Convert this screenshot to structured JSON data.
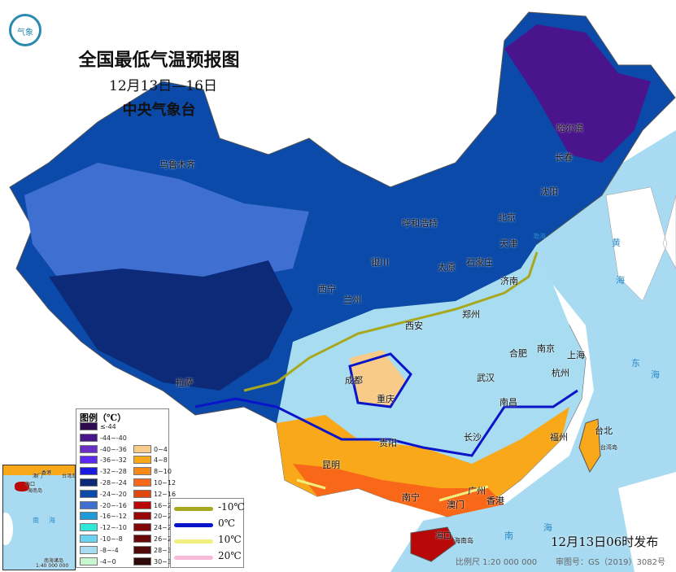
{
  "title": "全国最低气温预报图",
  "date_range": "12月13日—16日",
  "issuer": "中央气象台",
  "logo": "气象",
  "cities": [
    "乌鲁木齐",
    "哈尔滨",
    "长春",
    "沈阳",
    "北京",
    "天津",
    "呼和浩特",
    "银川",
    "太原",
    "石家庄",
    "济南",
    "西宁",
    "兰州",
    "郑州",
    "西安",
    "合肥",
    "南京",
    "上海",
    "拉萨",
    "成都",
    "重庆",
    "武汉",
    "杭州",
    "长沙",
    "南昌",
    "贵阳",
    "福州",
    "台北",
    "昆明",
    "南宁",
    "广州",
    "香港",
    "澳门",
    "海口",
    "海南岛",
    "台湾岛"
  ],
  "seas": [
    "黄",
    "海",
    "渤海",
    "东",
    "海",
    "南",
    "海"
  ],
  "legend": {
    "title": "图例（℃）",
    "cold": [
      {
        "label": "≤-44",
        "color": "#2e0a4e"
      },
      {
        "label": "-44~-40",
        "color": "#4a148c"
      },
      {
        "label": "-40~-36",
        "color": "#6a2fc4"
      },
      {
        "label": "-36~-32",
        "color": "#5b2af0"
      },
      {
        "label": "-32~-28",
        "color": "#1b1be0"
      },
      {
        "label": "-28~-24",
        "color": "#0d2a78"
      },
      {
        "label": "-24~-20",
        "color": "#0b4aa8"
      },
      {
        "label": "-20~-16",
        "color": "#3f6fd0"
      },
      {
        "label": "-16~-12",
        "color": "#1e9ad8"
      },
      {
        "label": "-12~-10",
        "color": "#30e8d8"
      },
      {
        "label": "-10~-8",
        "color": "#6cd2f2"
      },
      {
        "label": "-8~-4",
        "color": "#a8dcf0"
      },
      {
        "label": "-4~0",
        "color": "#c8f8d0"
      }
    ],
    "warm": [
      {
        "label": "0~4",
        "color": "#f8cc88"
      },
      {
        "label": "4~8",
        "color": "#f8a818"
      },
      {
        "label": "8~10",
        "color": "#f88818"
      },
      {
        "label": "10~12",
        "color": "#f86818"
      },
      {
        "label": "12~16",
        "color": "#e04810"
      },
      {
        "label": "16~20",
        "color": "#b80808"
      },
      {
        "label": "20~24",
        "color": "#980808"
      },
      {
        "label": "24~26",
        "color": "#800808"
      },
      {
        "label": "26~28",
        "color": "#680808"
      },
      {
        "label": "28~30",
        "color": "#500808"
      },
      {
        "label": "30~32",
        "color": "#300808"
      }
    ],
    "isolines": [
      {
        "label": "-10℃",
        "color": "#a8a820"
      },
      {
        "label": "0℃",
        "color": "#0a14c8"
      },
      {
        "label": "10℃",
        "color": "#f0f080"
      },
      {
        "label": "20℃",
        "color": "#f8b8d8"
      }
    ]
  },
  "inset": {
    "labels": [
      "澳门",
      "香港",
      "台湾岛",
      "海口",
      "海南岛",
      "南",
      "海",
      "南海诸岛"
    ],
    "scale": "1:40 000 000"
  },
  "issued": "12月13日06时发布",
  "scale": "比例尺 1:20 000 000",
  "map_approval": "审图号：GS（2019）3082号"
}
